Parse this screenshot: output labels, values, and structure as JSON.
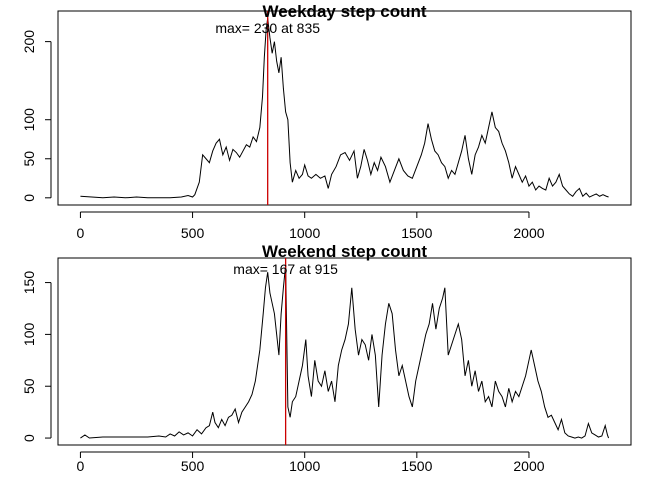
{
  "chart_data": [
    {
      "type": "line",
      "title": "Weekday step count",
      "xlabel": "",
      "ylabel": "",
      "xlim": [
        -100,
        2455
      ],
      "ylim": [
        -9.2,
        239.2
      ],
      "x_ticks": [
        0,
        500,
        1000,
        1500,
        2000
      ],
      "y_ticks": [
        0,
        50,
        100,
        200
      ],
      "annotation": "max= 230 at 835",
      "marker_x": 835,
      "marker_color": "#cc0000",
      "series": [
        {
          "points": [
            [
              0,
              2
            ],
            [
              50,
              1
            ],
            [
              100,
              0
            ],
            [
              150,
              1
            ],
            [
              200,
              0
            ],
            [
              250,
              1
            ],
            [
              300,
              0
            ],
            [
              350,
              0
            ],
            [
              400,
              0
            ],
            [
              450,
              1
            ],
            [
              480,
              3
            ],
            [
              500,
              1
            ],
            [
              510,
              4
            ],
            [
              530,
              20
            ],
            [
              545,
              55
            ],
            [
              560,
              50
            ],
            [
              575,
              45
            ],
            [
              590,
              60
            ],
            [
              605,
              70
            ],
            [
              620,
              75
            ],
            [
              635,
              55
            ],
            [
              650,
              65
            ],
            [
              665,
              48
            ],
            [
              680,
              62
            ],
            [
              695,
              58
            ],
            [
              710,
              52
            ],
            [
              725,
              60
            ],
            [
              740,
              68
            ],
            [
              755,
              65
            ],
            [
              770,
              78
            ],
            [
              785,
              72
            ],
            [
              800,
              90
            ],
            [
              812,
              130
            ],
            [
              820,
              180
            ],
            [
              828,
              215
            ],
            [
              835,
              230
            ],
            [
              845,
              205
            ],
            [
              855,
              185
            ],
            [
              865,
              200
            ],
            [
              875,
              175
            ],
            [
              885,
              160
            ],
            [
              895,
              180
            ],
            [
              905,
              140
            ],
            [
              915,
              110
            ],
            [
              925,
              100
            ],
            [
              935,
              45
            ],
            [
              945,
              20
            ],
            [
              960,
              35
            ],
            [
              975,
              25
            ],
            [
              990,
              30
            ],
            [
              1000,
              42
            ],
            [
              1015,
              28
            ],
            [
              1030,
              25
            ],
            [
              1050,
              30
            ],
            [
              1070,
              25
            ],
            [
              1090,
              28
            ],
            [
              1105,
              12
            ],
            [
              1120,
              30
            ],
            [
              1140,
              40
            ],
            [
              1160,
              55
            ],
            [
              1180,
              58
            ],
            [
              1200,
              48
            ],
            [
              1220,
              60
            ],
            [
              1235,
              25
            ],
            [
              1250,
              40
            ],
            [
              1265,
              62
            ],
            [
              1280,
              48
            ],
            [
              1295,
              30
            ],
            [
              1310,
              45
            ],
            [
              1325,
              35
            ],
            [
              1340,
              52
            ],
            [
              1360,
              40
            ],
            [
              1380,
              20
            ],
            [
              1400,
              35
            ],
            [
              1420,
              50
            ],
            [
              1440,
              35
            ],
            [
              1460,
              28
            ],
            [
              1480,
              25
            ],
            [
              1500,
              40
            ],
            [
              1520,
              55
            ],
            [
              1535,
              70
            ],
            [
              1550,
              95
            ],
            [
              1565,
              75
            ],
            [
              1580,
              60
            ],
            [
              1595,
              55
            ],
            [
              1610,
              45
            ],
            [
              1625,
              40
            ],
            [
              1640,
              25
            ],
            [
              1655,
              35
            ],
            [
              1670,
              30
            ],
            [
              1685,
              45
            ],
            [
              1700,
              60
            ],
            [
              1715,
              80
            ],
            [
              1730,
              50
            ],
            [
              1745,
              30
            ],
            [
              1760,
              55
            ],
            [
              1775,
              65
            ],
            [
              1790,
              80
            ],
            [
              1805,
              70
            ],
            [
              1820,
              90
            ],
            [
              1835,
              110
            ],
            [
              1850,
              90
            ],
            [
              1865,
              85
            ],
            [
              1880,
              70
            ],
            [
              1895,
              60
            ],
            [
              1910,
              45
            ],
            [
              1925,
              25
            ],
            [
              1940,
              40
            ],
            [
              1955,
              30
            ],
            [
              1970,
              20
            ],
            [
              1985,
              28
            ],
            [
              2000,
              15
            ],
            [
              2015,
              20
            ],
            [
              2030,
              10
            ],
            [
              2045,
              15
            ],
            [
              2060,
              12
            ],
            [
              2075,
              10
            ],
            [
              2090,
              25
            ],
            [
              2105,
              15
            ],
            [
              2120,
              20
            ],
            [
              2135,
              30
            ],
            [
              2150,
              15
            ],
            [
              2165,
              10
            ],
            [
              2180,
              5
            ],
            [
              2195,
              2
            ],
            [
              2210,
              8
            ],
            [
              2225,
              12
            ],
            [
              2240,
              2
            ],
            [
              2255,
              6
            ],
            [
              2270,
              1
            ],
            [
              2285,
              3
            ],
            [
              2300,
              5
            ],
            [
              2315,
              2
            ],
            [
              2330,
              4
            ],
            [
              2345,
              2
            ],
            [
              2355,
              1
            ]
          ]
        }
      ]
    },
    {
      "type": "line",
      "title": "Weekend step count",
      "xlabel": "",
      "ylabel": "",
      "xlim": [
        -100,
        2455
      ],
      "ylim": [
        -6.7,
        173.7
      ],
      "x_ticks": [
        0,
        500,
        1000,
        1500,
        2000
      ],
      "y_ticks": [
        0,
        50,
        100,
        150
      ],
      "annotation": "max= 167 at 915",
      "marker_x": 915,
      "marker_color": "#cc0000",
      "series": [
        {
          "points": [
            [
              0,
              0
            ],
            [
              20,
              3
            ],
            [
              40,
              0
            ],
            [
              100,
              1
            ],
            [
              150,
              1
            ],
            [
              200,
              1
            ],
            [
              250,
              1
            ],
            [
              300,
              1
            ],
            [
              350,
              2
            ],
            [
              380,
              1
            ],
            [
              400,
              4
            ],
            [
              420,
              2
            ],
            [
              440,
              6
            ],
            [
              460,
              3
            ],
            [
              480,
              5
            ],
            [
              500,
              2
            ],
            [
              520,
              8
            ],
            [
              540,
              4
            ],
            [
              560,
              10
            ],
            [
              575,
              12
            ],
            [
              590,
              25
            ],
            [
              600,
              15
            ],
            [
              615,
              10
            ],
            [
              630,
              18
            ],
            [
              645,
              12
            ],
            [
              660,
              20
            ],
            [
              675,
              22
            ],
            [
              690,
              28
            ],
            [
              705,
              15
            ],
            [
              720,
              25
            ],
            [
              735,
              30
            ],
            [
              750,
              35
            ],
            [
              765,
              42
            ],
            [
              780,
              55
            ],
            [
              790,
              70
            ],
            [
              800,
              85
            ],
            [
              815,
              120
            ],
            [
              825,
              145
            ],
            [
              835,
              160
            ],
            [
              845,
              140
            ],
            [
              855,
              130
            ],
            [
              865,
              120
            ],
            [
              875,
              100
            ],
            [
              885,
              80
            ],
            [
              895,
              120
            ],
            [
              905,
              145
            ],
            [
              915,
              167
            ],
            [
              925,
              30
            ],
            [
              935,
              20
            ],
            [
              945,
              35
            ],
            [
              960,
              40
            ],
            [
              975,
              55
            ],
            [
              990,
              70
            ],
            [
              1005,
              95
            ],
            [
              1015,
              60
            ],
            [
              1030,
              40
            ],
            [
              1045,
              75
            ],
            [
              1060,
              55
            ],
            [
              1075,
              50
            ],
            [
              1090,
              65
            ],
            [
              1105,
              45
            ],
            [
              1120,
              55
            ],
            [
              1135,
              35
            ],
            [
              1150,
              70
            ],
            [
              1165,
              85
            ],
            [
              1180,
              95
            ],
            [
              1195,
              110
            ],
            [
              1210,
              145
            ],
            [
              1225,
              105
            ],
            [
              1240,
              80
            ],
            [
              1255,
              95
            ],
            [
              1270,
              90
            ],
            [
              1285,
              75
            ],
            [
              1300,
              100
            ],
            [
              1315,
              80
            ],
            [
              1330,
              30
            ],
            [
              1345,
              80
            ],
            [
              1360,
              110
            ],
            [
              1375,
              130
            ],
            [
              1390,
              120
            ],
            [
              1405,
              85
            ],
            [
              1420,
              60
            ],
            [
              1435,
              70
            ],
            [
              1450,
              55
            ],
            [
              1465,
              40
            ],
            [
              1480,
              30
            ],
            [
              1495,
              55
            ],
            [
              1510,
              70
            ],
            [
              1525,
              85
            ],
            [
              1540,
              100
            ],
            [
              1555,
              110
            ],
            [
              1570,
              130
            ],
            [
              1585,
              105
            ],
            [
              1600,
              125
            ],
            [
              1615,
              135
            ],
            [
              1625,
              145
            ],
            [
              1640,
              80
            ],
            [
              1655,
              90
            ],
            [
              1670,
              100
            ],
            [
              1685,
              110
            ],
            [
              1700,
              95
            ],
            [
              1715,
              60
            ],
            [
              1730,
              75
            ],
            [
              1745,
              50
            ],
            [
              1760,
              65
            ],
            [
              1775,
              45
            ],
            [
              1790,
              55
            ],
            [
              1805,
              35
            ],
            [
              1820,
              40
            ],
            [
              1835,
              30
            ],
            [
              1850,
              55
            ],
            [
              1865,
              45
            ],
            [
              1880,
              40
            ],
            [
              1895,
              30
            ],
            [
              1910,
              48
            ],
            [
              1925,
              35
            ],
            [
              1940,
              45
            ],
            [
              1955,
              40
            ],
            [
              1970,
              50
            ],
            [
              1985,
              60
            ],
            [
              2000,
              75
            ],
            [
              2010,
              85
            ],
            [
              2025,
              70
            ],
            [
              2040,
              55
            ],
            [
              2055,
              45
            ],
            [
              2070,
              30
            ],
            [
              2085,
              20
            ],
            [
              2100,
              22
            ],
            [
              2115,
              15
            ],
            [
              2130,
              8
            ],
            [
              2145,
              18
            ],
            [
              2160,
              5
            ],
            [
              2175,
              2
            ],
            [
              2190,
              1
            ],
            [
              2205,
              0
            ],
            [
              2220,
              1
            ],
            [
              2235,
              0
            ],
            [
              2250,
              2
            ],
            [
              2265,
              14
            ],
            [
              2280,
              5
            ],
            [
              2295,
              3
            ],
            [
              2310,
              1
            ],
            [
              2325,
              2
            ],
            [
              2340,
              12
            ],
            [
              2350,
              3
            ],
            [
              2355,
              0
            ]
          ]
        }
      ]
    }
  ]
}
